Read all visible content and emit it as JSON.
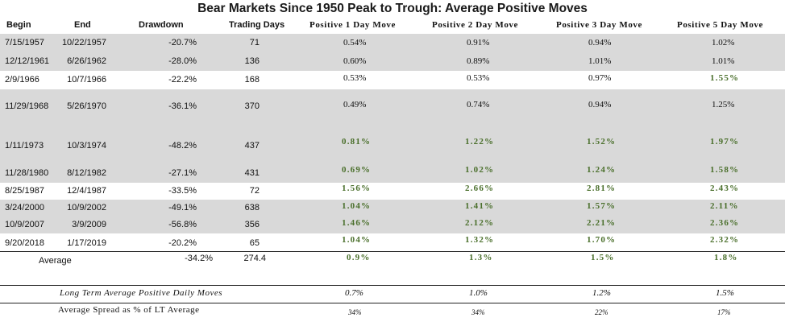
{
  "title": "Bear Markets Since 1950 Peak to Trough: Average Positive Moves",
  "headers": [
    "Begin",
    "End",
    "Drawdown",
    "Trading Days",
    "Positive 1 Day Move",
    "Positive 2 Day Move",
    "Positive 3 Day Move",
    "Positive 5 Day Move"
  ],
  "rows": [
    {
      "begin": "7/15/1957",
      "end": "10/22/1957",
      "drawdown": "-20.7%",
      "days": "71",
      "m1": "0.54%",
      "m2": "0.91%",
      "m3": "0.94%",
      "m5": "1.02%"
    },
    {
      "begin": "12/12/1961",
      "end": "6/26/1962",
      "drawdown": "-28.0%",
      "days": "136",
      "m1": "0.60%",
      "m2": "0.89%",
      "m3": "1.01%",
      "m5": "1.01%"
    },
    {
      "begin": "2/9/1966",
      "end": "10/7/1966",
      "drawdown": "-22.2%",
      "days": "168",
      "m1": "0.53%",
      "m2": "0.53%",
      "m3": "0.97%",
      "m5": "1.55%"
    },
    {
      "begin": "11/29/1968",
      "end": "5/26/1970",
      "drawdown": "-36.1%",
      "days": "370",
      "m1": "0.49%",
      "m2": "0.74%",
      "m3": "0.94%",
      "m5": "1.25%"
    },
    {
      "begin": "1/11/1973",
      "end": "10/3/1974",
      "drawdown": "-48.2%",
      "days": "437",
      "m1": "0.81%",
      "m2": "1.22%",
      "m3": "1.52%",
      "m5": "1.97%"
    },
    {
      "begin": "11/28/1980",
      "end": "8/12/1982",
      "drawdown": "-27.1%",
      "days": "431",
      "m1": "0.69%",
      "m2": "1.02%",
      "m3": "1.24%",
      "m5": "1.58%"
    },
    {
      "begin": "8/25/1987",
      "end": "12/4/1987",
      "drawdown": "-33.5%",
      "days": "72",
      "m1": "1.56%",
      "m2": "2.66%",
      "m3": "2.81%",
      "m5": "2.43%"
    },
    {
      "begin": "3/24/2000",
      "end": "10/9/2002",
      "drawdown": "-49.1%",
      "days": "638",
      "m1": "1.04%",
      "m2": "1.41%",
      "m3": "1.57%",
      "m5": "2.11%"
    },
    {
      "begin": "10/9/2007",
      "end": "3/9/2009",
      "drawdown": "-56.8%",
      "days": "356",
      "m1": "1.46%",
      "m2": "2.12%",
      "m3": "2.21%",
      "m5": "2.36%"
    },
    {
      "begin": "9/20/2018",
      "end": "1/17/2019",
      "drawdown": "-20.2%",
      "days": "65",
      "m1": "1.04%",
      "m2": "1.32%",
      "m3": "1.70%",
      "m5": "2.32%"
    }
  ],
  "average": {
    "label": "Average",
    "drawdown": "-34.2%",
    "days": "274.4",
    "m1": "0.9%",
    "m2": "1.3%",
    "m3": "1.5%",
    "m5": "1.8%"
  },
  "long_term": {
    "label": "Long Term Average Positive Daily Moves",
    "m1": "0.7%",
    "m2": "1.0%",
    "m3": "1.2%",
    "m5": "1.5%"
  },
  "spread": {
    "label": "Average Spread as % of LT Average",
    "m1": "34%",
    "m2": "34%",
    "m3": "22%",
    "m5": "17%"
  },
  "colors": {
    "band": "#d9d9d9",
    "highlight_green": "#4a6f2b",
    "text": "#111111"
  }
}
